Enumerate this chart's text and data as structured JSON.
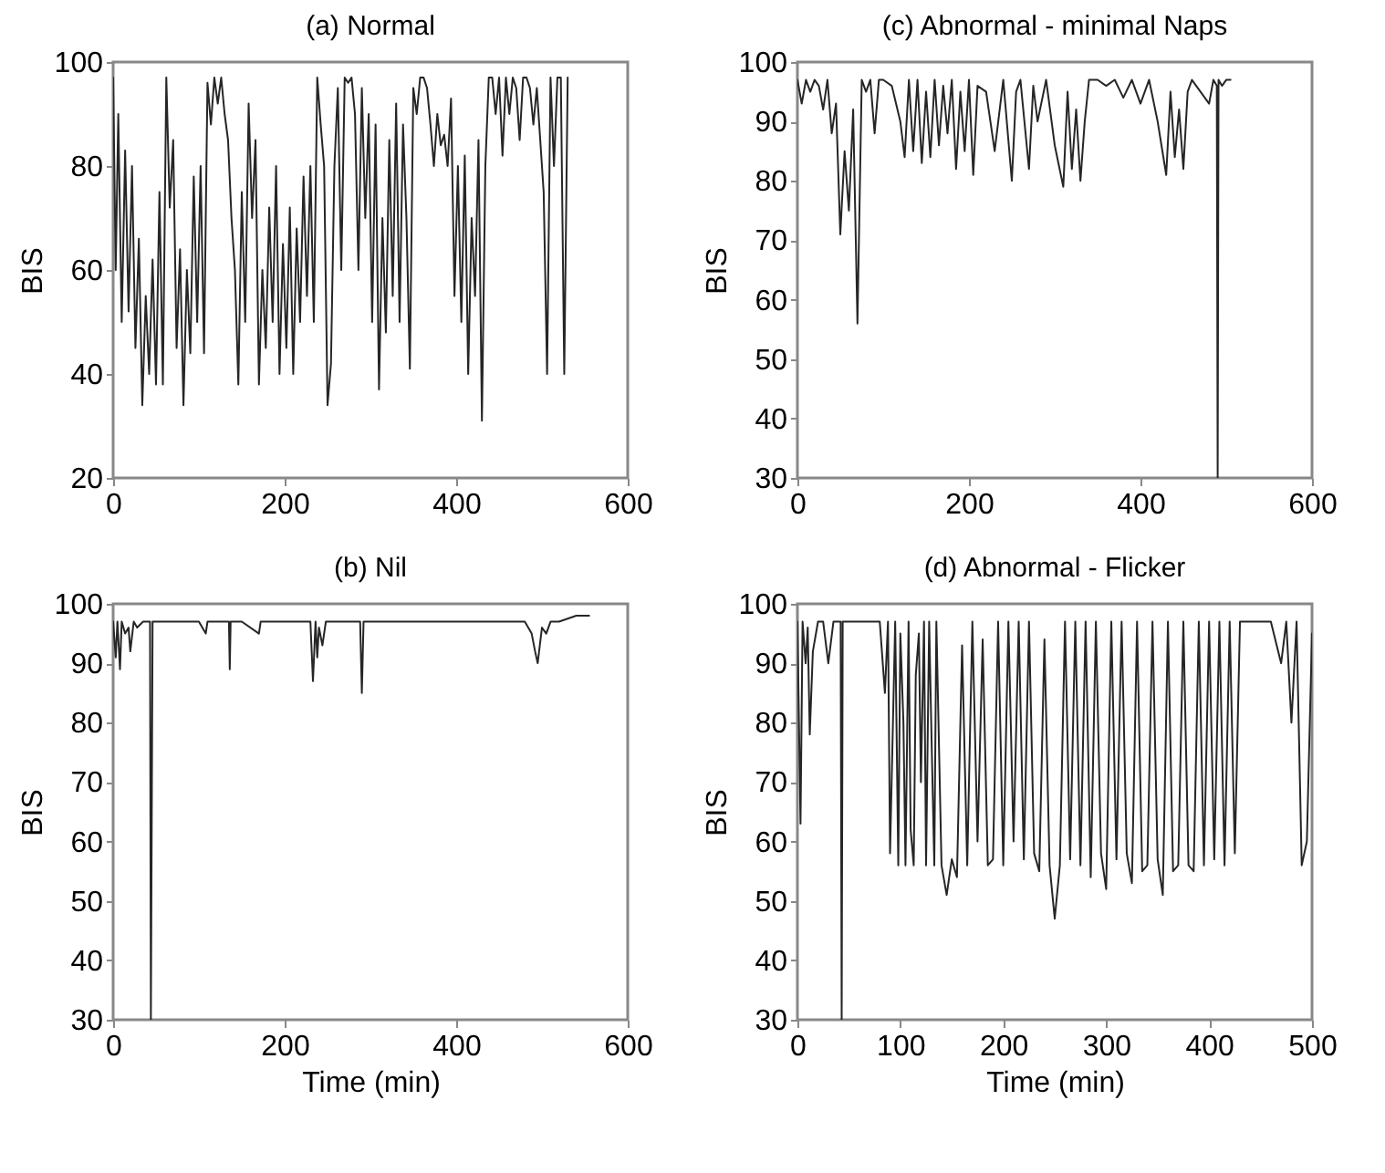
{
  "chart_data": [
    {
      "type": "line",
      "title": "(a) Normal",
      "ylabel": "BIS",
      "xlim": [
        0,
        600
      ],
      "ylim": [
        20,
        100
      ],
      "xticks": [
        0,
        200,
        400,
        600
      ],
      "yticks": [
        20,
        40,
        60,
        80,
        100
      ],
      "series": [
        {
          "color": "#262626",
          "x": [
            0,
            3,
            6,
            10,
            14,
            18,
            22,
            26,
            30,
            34,
            38,
            42,
            46,
            50,
            54,
            58,
            62,
            66,
            70,
            74,
            78,
            82,
            86,
            90,
            94,
            98,
            102,
            106,
            110,
            114,
            118,
            122,
            126,
            130,
            134,
            138,
            142,
            146,
            150,
            154,
            158,
            162,
            166,
            170,
            174,
            178,
            182,
            186,
            190,
            194,
            198,
            202,
            206,
            210,
            214,
            218,
            222,
            226,
            230,
            234,
            238,
            242,
            246,
            250,
            254,
            258,
            262,
            266,
            270,
            274,
            278,
            282,
            286,
            290,
            294,
            298,
            302,
            306,
            310,
            314,
            318,
            322,
            326,
            330,
            334,
            338,
            342,
            346,
            350,
            354,
            358,
            362,
            366,
            370,
            374,
            378,
            382,
            386,
            390,
            394,
            398,
            402,
            406,
            410,
            414,
            418,
            422,
            426,
            430,
            434,
            438,
            442,
            446,
            450,
            454,
            458,
            462,
            466,
            470,
            474,
            478,
            482,
            486,
            490,
            494,
            498,
            502,
            506,
            510,
            514,
            518,
            522,
            526,
            530
          ],
          "values": [
            97,
            60,
            90,
            50,
            83,
            52,
            80,
            45,
            66,
            34,
            55,
            40,
            62,
            38,
            75,
            38,
            97,
            72,
            85,
            45,
            64,
            34,
            60,
            44,
            78,
            50,
            80,
            44,
            96,
            88,
            97,
            92,
            97,
            90,
            85,
            70,
            60,
            38,
            75,
            50,
            92,
            70,
            85,
            38,
            60,
            45,
            72,
            50,
            80,
            40,
            65,
            45,
            72,
            40,
            68,
            50,
            78,
            55,
            80,
            50,
            97,
            88,
            80,
            34,
            42,
            80,
            95,
            60,
            97,
            96,
            97,
            90,
            60,
            95,
            70,
            90,
            50,
            88,
            37,
            70,
            48,
            85,
            55,
            92,
            50,
            88,
            70,
            41,
            95,
            90,
            97,
            97,
            95,
            88,
            80,
            90,
            84,
            86,
            80,
            93,
            55,
            80,
            50,
            82,
            40,
            70,
            55,
            85,
            31,
            80,
            97,
            97,
            90,
            97,
            82,
            97,
            90,
            97,
            95,
            85,
            97,
            97,
            95,
            88,
            95,
            85,
            75,
            40,
            97,
            80,
            97,
            97,
            40,
            97
          ]
        }
      ]
    },
    {
      "type": "line",
      "title": "(c) Abnormal - minimal Naps",
      "ylabel": "BIS",
      "xlim": [
        0,
        600
      ],
      "ylim": [
        30,
        100
      ],
      "xticks": [
        0,
        200,
        400,
        600
      ],
      "yticks": [
        30,
        40,
        50,
        60,
        70,
        80,
        90,
        100
      ],
      "series": [
        {
          "color": "#262626",
          "x": [
            0,
            5,
            10,
            15,
            20,
            25,
            30,
            35,
            40,
            45,
            50,
            55,
            60,
            65,
            70,
            75,
            80,
            85,
            90,
            95,
            100,
            110,
            120,
            125,
            130,
            135,
            140,
            145,
            150,
            155,
            160,
            165,
            170,
            175,
            180,
            185,
            190,
            195,
            200,
            205,
            210,
            220,
            230,
            240,
            250,
            255,
            260,
            270,
            275,
            280,
            290,
            300,
            310,
            315,
            320,
            325,
            330,
            335,
            340,
            350,
            360,
            370,
            380,
            390,
            400,
            410,
            420,
            430,
            435,
            440,
            445,
            450,
            455,
            460,
            470,
            480,
            485,
            489,
            490,
            491,
            495,
            500,
            505
          ],
          "values": [
            97,
            93,
            97,
            95,
            97,
            96,
            92,
            97,
            88,
            93,
            71,
            85,
            75,
            92,
            56,
            97,
            95,
            97,
            88,
            97,
            97,
            96,
            90,
            84,
            97,
            85,
            97,
            83,
            95,
            84,
            97,
            86,
            96,
            88,
            97,
            82,
            95,
            85,
            97,
            81,
            96,
            95,
            85,
            97,
            80,
            95,
            97,
            82,
            96,
            90,
            97,
            86,
            79,
            95,
            82,
            92,
            80,
            90,
            97,
            97,
            96,
            97,
            94,
            97,
            93,
            97,
            90,
            81,
            95,
            84,
            92,
            82,
            95,
            97,
            95,
            93,
            97,
            96,
            30,
            97,
            96,
            97,
            97
          ]
        }
      ]
    },
    {
      "type": "line",
      "title": "(b) Nil",
      "xlabel": "Time (min)",
      "ylabel": "BIS",
      "xlim": [
        0,
        600
      ],
      "ylim": [
        30,
        100
      ],
      "xticks": [
        0,
        200,
        400,
        600
      ],
      "yticks": [
        30,
        40,
        50,
        60,
        70,
        80,
        90,
        100
      ],
      "series": [
        {
          "color": "#262626",
          "x": [
            0,
            3,
            5,
            8,
            10,
            14,
            18,
            20,
            24,
            28,
            35,
            40,
            43,
            44,
            46,
            60,
            100,
            108,
            110,
            120,
            135,
            136,
            137,
            150,
            170,
            172,
            175,
            200,
            230,
            233,
            236,
            238,
            240,
            244,
            248,
            260,
            288,
            290,
            292,
            310,
            350,
            400,
            420,
            450,
            480,
            488,
            492,
            495,
            500,
            505,
            510,
            520,
            540,
            555
          ],
          "values": [
            97,
            91,
            97,
            89,
            97,
            95,
            96,
            92,
            97,
            96,
            97,
            97,
            97,
            30,
            97,
            97,
            97,
            95,
            97,
            97,
            97,
            89,
            97,
            97,
            95,
            97,
            97,
            97,
            97,
            87,
            97,
            91,
            96,
            93,
            97,
            97,
            97,
            85,
            97,
            97,
            97,
            97,
            97,
            97,
            97,
            95,
            92,
            90,
            96,
            95,
            97,
            97,
            98,
            98
          ]
        }
      ]
    },
    {
      "type": "line",
      "title": "(d) Abnormal - Flicker",
      "xlabel": "Time (min)",
      "ylabel": "BIS",
      "xlim": [
        0,
        500
      ],
      "ylim": [
        30,
        100
      ],
      "xticks": [
        0,
        100,
        200,
        300,
        400,
        500
      ],
      "yticks": [
        30,
        40,
        50,
        60,
        70,
        80,
        90,
        100
      ],
      "series": [
        {
          "color": "#262626",
          "x": [
            0,
            3,
            5,
            8,
            10,
            12,
            15,
            20,
            25,
            30,
            35,
            40,
            42,
            43,
            44,
            50,
            60,
            70,
            80,
            85,
            88,
            90,
            95,
            98,
            100,
            103,
            105,
            108,
            110,
            113,
            115,
            118,
            120,
            123,
            125,
            128,
            130,
            133,
            135,
            140,
            145,
            150,
            155,
            160,
            165,
            170,
            175,
            180,
            185,
            190,
            195,
            200,
            205,
            210,
            215,
            220,
            225,
            230,
            235,
            240,
            245,
            250,
            255,
            260,
            265,
            270,
            275,
            280,
            285,
            290,
            295,
            300,
            305,
            310,
            315,
            320,
            325,
            330,
            335,
            340,
            345,
            350,
            355,
            360,
            365,
            370,
            375,
            380,
            385,
            390,
            395,
            400,
            405,
            410,
            415,
            420,
            425,
            430,
            435,
            440,
            450,
            460,
            470,
            475,
            480,
            485,
            490,
            495,
            500
          ],
          "values": [
            97,
            63,
            97,
            90,
            96,
            78,
            92,
            97,
            97,
            90,
            97,
            97,
            97,
            30,
            97,
            97,
            97,
            97,
            97,
            85,
            97,
            58,
            97,
            56,
            95,
            80,
            56,
            97,
            62,
            56,
            88,
            95,
            70,
            97,
            56,
            97,
            80,
            56,
            97,
            56,
            51,
            57,
            54,
            93,
            56,
            97,
            60,
            94,
            56,
            57,
            97,
            56,
            97,
            60,
            97,
            57,
            97,
            58,
            55,
            94,
            56,
            47,
            56,
            97,
            57,
            97,
            56,
            97,
            54,
            97,
            58,
            52,
            97,
            57,
            97,
            58,
            53,
            97,
            55,
            56,
            97,
            57,
            51,
            97,
            55,
            56,
            97,
            56,
            55,
            97,
            56,
            97,
            57,
            97,
            56,
            97,
            58,
            97,
            97,
            97,
            97,
            97,
            90,
            97,
            80,
            97,
            56,
            60,
            95
          ]
        }
      ]
    }
  ]
}
